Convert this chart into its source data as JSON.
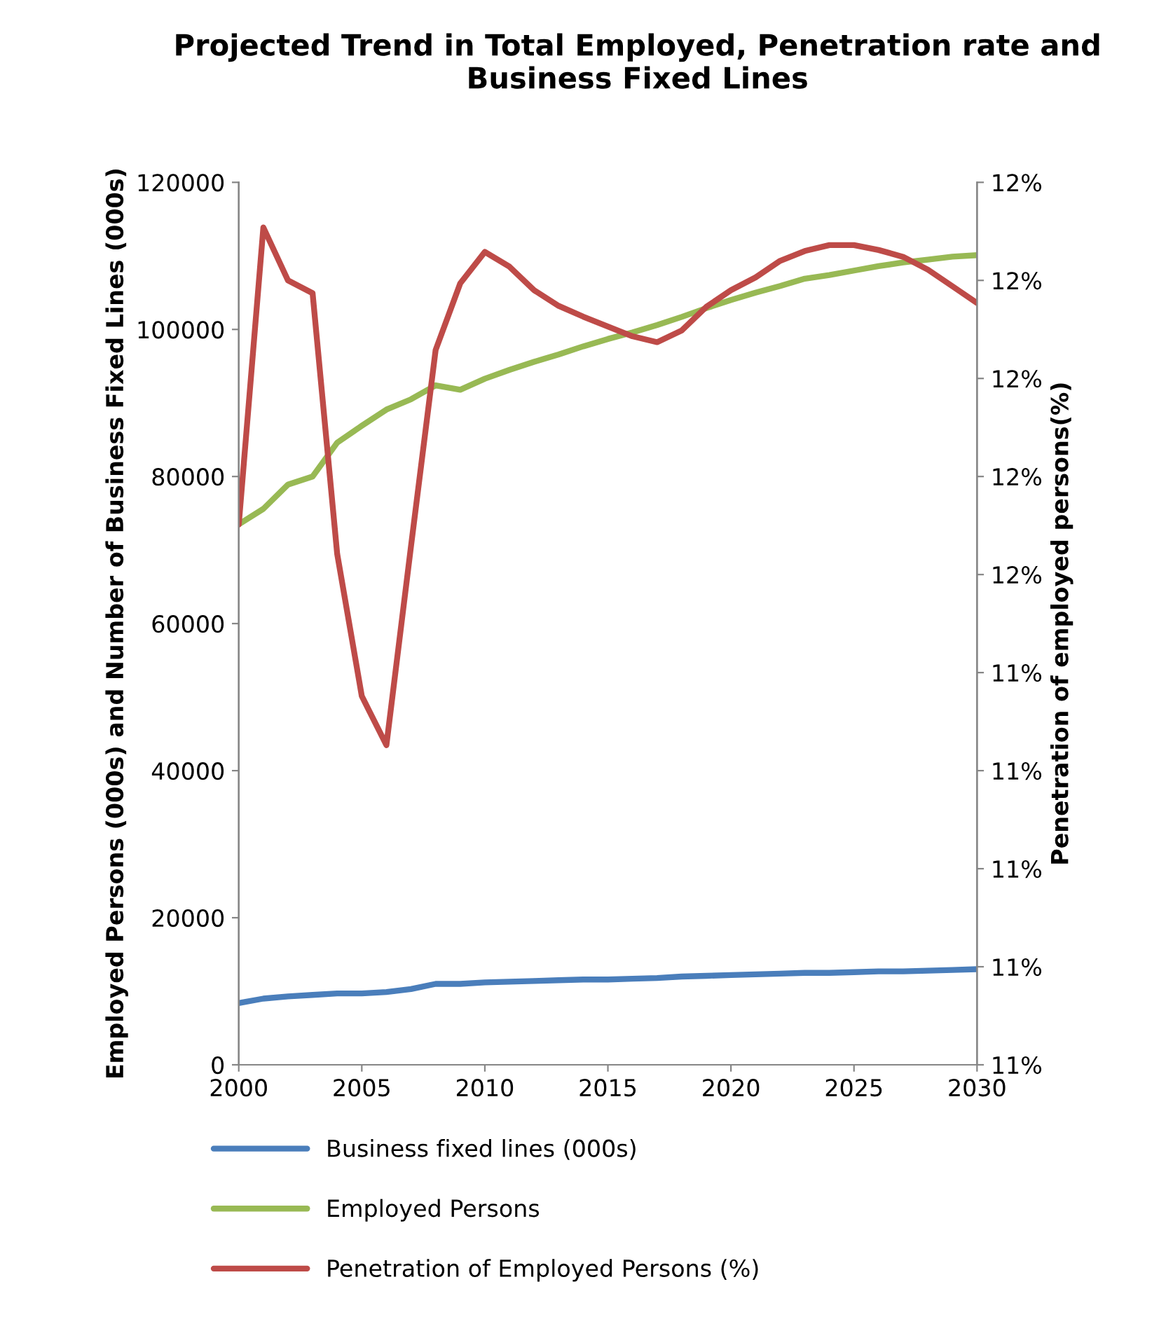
{
  "chart_data": {
    "type": "line",
    "title": "Projected Trend in Total Employed, Penetration rate and Business Fixed Lines",
    "xlabel": null,
    "ylabel": "Employed Persons (000s) and Number of Business Fixed Lines (000s)",
    "y2label": "Penetration of employed persons(%)",
    "x": [
      2000,
      2001,
      2002,
      2003,
      2004,
      2005,
      2006,
      2007,
      2008,
      2009,
      2010,
      2011,
      2012,
      2013,
      2014,
      2015,
      2016,
      2017,
      2018,
      2019,
      2020,
      2021,
      2022,
      2023,
      2024,
      2025,
      2026,
      2027,
      2028,
      2029,
      2030
    ],
    "series": [
      {
        "name": "Business fixed lines (000s)",
        "color": "#4a7ebb",
        "values": [
          8400,
          9000,
          9300,
          9500,
          9700,
          9700,
          9900,
          10300,
          11000,
          11000,
          11200,
          11300,
          11400,
          11500,
          11600,
          11600,
          11700,
          11800,
          12000,
          12100,
          12200,
          12300,
          12400,
          12500,
          12500,
          12600,
          12700,
          12700,
          12800,
          12900,
          13000
        ]
      },
      {
        "name": "Employed Persons",
        "color": "#98b954",
        "values": [
          73500,
          75600,
          78900,
          80000,
          84600,
          86900,
          89100,
          90500,
          92400,
          91800,
          93300,
          94500,
          95600,
          96600,
          97700,
          98700,
          99600,
          100600,
          101700,
          102900,
          104000,
          105000,
          105900,
          106900,
          107400,
          108000,
          108600,
          109100,
          109500,
          109900,
          110100
        ]
      },
      {
        "name": "Penetration of Employed Persons (%)",
        "color": "#be4b48",
        "axis": "y2",
        "values": [
          11.551,
          11.854,
          11.8,
          11.787,
          11.521,
          11.376,
          11.326,
          11.529,
          11.729,
          11.797,
          11.829,
          11.814,
          11.79,
          11.774,
          11.763,
          11.753,
          11.743,
          11.737,
          11.749,
          11.773,
          11.79,
          11.803,
          11.82,
          11.83,
          11.836,
          11.836,
          11.831,
          11.824,
          11.811,
          11.794,
          11.777
        ]
      }
    ],
    "xlim": [
      2000,
      2030
    ],
    "xticks": [
      2000,
      2005,
      2010,
      2015,
      2020,
      2025,
      2030
    ],
    "ylim": [
      0,
      120000
    ],
    "yticks": [
      0,
      20000,
      40000,
      60000,
      80000,
      100000,
      120000
    ],
    "y2lim": [
      11.0,
      11.9
    ],
    "y2ticks": [
      {
        "value": 11.0,
        "label": "11%"
      },
      {
        "value": 11.1,
        "label": "11%"
      },
      {
        "value": 11.2,
        "label": "11%"
      },
      {
        "value": 11.3,
        "label": "11%"
      },
      {
        "value": 11.4,
        "label": "11%"
      },
      {
        "value": 11.5,
        "label": "12%"
      },
      {
        "value": 11.6,
        "label": "12%"
      },
      {
        "value": 11.7,
        "label": "12%"
      },
      {
        "value": 11.8,
        "label": "12%"
      },
      {
        "value": 11.9,
        "label": "12%"
      }
    ],
    "grid": false,
    "legend": "bottom",
    "marker": "none",
    "line_style": "solid"
  }
}
